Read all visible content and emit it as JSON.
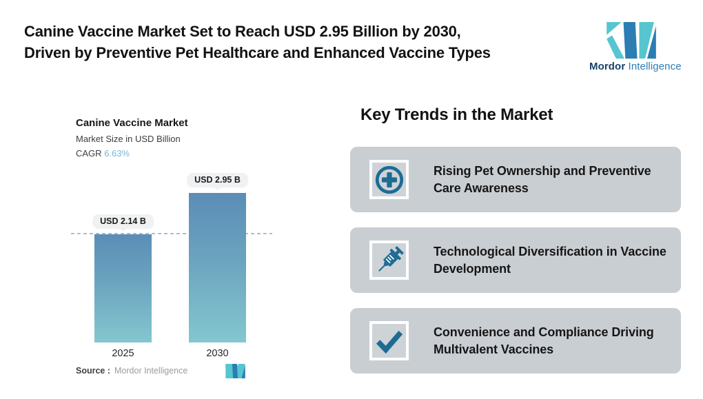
{
  "header": {
    "title_line1": "Canine Vaccine Market Set to Reach USD 2.95 Billion by 2030,",
    "title_line2": "Driven by Preventive Pet Healthcare and Enhanced Vaccine Types"
  },
  "logo": {
    "brand_bold": "Mordor",
    "brand_light": "Intelligence",
    "mark_teal": "#56c5cf",
    "mark_blue": "#2b7db3"
  },
  "chart": {
    "title": "Canine Vaccine Market",
    "subtitle": "Market Size in USD Billion",
    "cagr_label": "CAGR",
    "cagr_value": "6.63%",
    "source_label": "Source :",
    "source_value": "Mordor Intelligence"
  },
  "chart_data": {
    "type": "bar",
    "title": "Canine Vaccine Market",
    "subtitle": "Market Size in USD Billion",
    "cagr": "6.63%",
    "unit": "USD Billion",
    "categories": [
      "2025",
      "2030"
    ],
    "values": [
      2.14,
      2.95
    ],
    "value_labels": [
      "USD 2.14 B",
      "USD 2.95 B"
    ],
    "reference_line": 2.14,
    "ylim": [
      0,
      2.95
    ],
    "grid": false,
    "legend": "none",
    "colors": {
      "bar_gradient_top": "#5b8db6",
      "bar_gradient_bottom": "#84c7cf",
      "dashed_line": "#a3c0d6",
      "cagr_accent": "#7cb5da",
      "callout_bg": "#eff1f2"
    }
  },
  "trends": {
    "heading": "Key Trends in the Market",
    "card_bg": "#c9ced3",
    "icon_color": "#1d6b94",
    "cards": [
      {
        "icon": "medical-cross-circle-icon",
        "text": "Rising Pet Ownership and Preventive Care Awareness"
      },
      {
        "icon": "syringe-icon",
        "text": "Technological Diversification in Vaccine Development"
      },
      {
        "icon": "checkmark-icon",
        "text": "Convenience and Compliance Driving Multivalent Vaccines"
      }
    ]
  }
}
